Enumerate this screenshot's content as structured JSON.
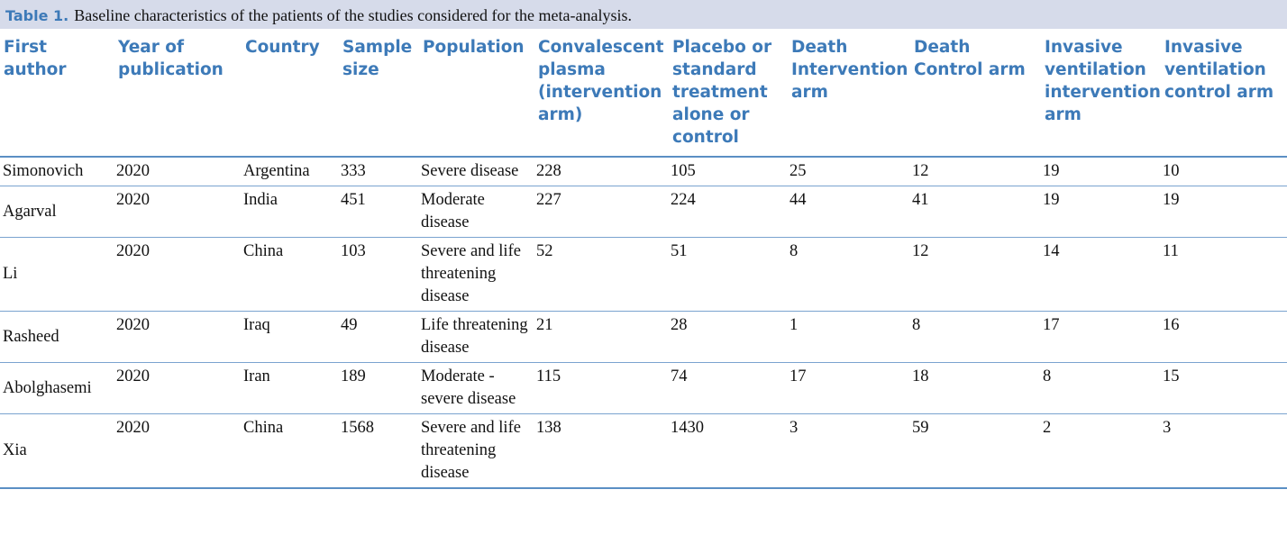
{
  "caption": {
    "label": "Table 1.",
    "text": "Baseline characteristics of the patients of the studies considered for the meta-analysis."
  },
  "table": {
    "headers": [
      "First author",
      "Year of publication",
      "Country",
      "Sample size",
      "Population",
      "Convalescent plasma (intervention arm)",
      "Placebo or standard treatment alone or control",
      "Death Intervention arm",
      "Death Control arm",
      "Invasive ventilation intervention arm",
      "Invasive ventilation control arm"
    ],
    "rows": [
      [
        "Simonovich",
        "2020",
        "Argentina",
        "333",
        "Severe disease",
        "228",
        "105",
        "25",
        "12",
        "19",
        "10"
      ],
      [
        "Agarval",
        "2020",
        "India",
        "451",
        "Moderate disease",
        "227",
        "224",
        "44",
        "41",
        "19",
        "19"
      ],
      [
        "Li",
        "2020",
        "China",
        "103",
        "Severe and life threatening disease",
        "52",
        "51",
        "8",
        "12",
        "14",
        "11"
      ],
      [
        "Rasheed",
        "2020",
        "Iraq",
        "49",
        "Life threatening disease",
        "21",
        "28",
        "1",
        "8",
        "17",
        "16"
      ],
      [
        "Abolghasemi",
        "2020",
        "Iran",
        "189",
        "Moderate - severe disease",
        "115",
        "74",
        "17",
        "18",
        "8",
        "15"
      ],
      [
        "Xia",
        "2020",
        "China",
        "1568",
        "Severe and life threatening disease",
        "138",
        "1430",
        "3",
        "59",
        "2",
        "3"
      ]
    ]
  }
}
